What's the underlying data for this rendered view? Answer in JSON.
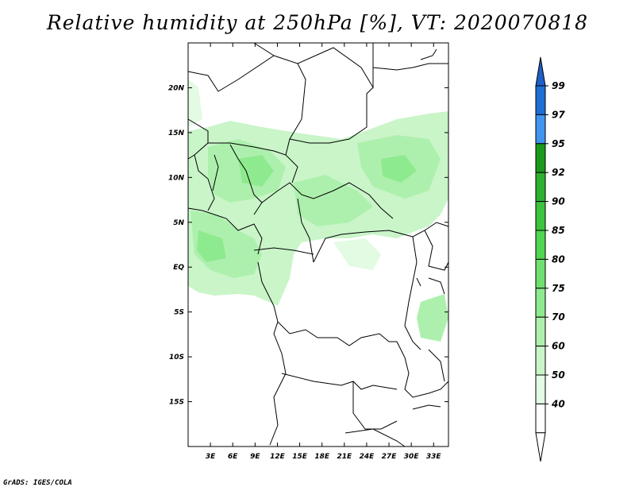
{
  "title": "Relative humidity at 250hPa [%], VT: 2020070818",
  "credit": "GrADS: IGES/COLA",
  "map": {
    "lon_range": [
      0,
      35
    ],
    "lat_range": [
      -20,
      25
    ],
    "lat_ticks": [
      "20N",
      "15N",
      "10N",
      "5N",
      "EQ",
      "5S",
      "10S",
      "15S"
    ],
    "lat_values": [
      20,
      15,
      10,
      5,
      0,
      -5,
      -10,
      -15
    ],
    "lon_ticks": [
      "3E",
      "6E",
      "9E",
      "12E",
      "15E",
      "18E",
      "21E",
      "24E",
      "27E",
      "30E",
      "33E"
    ],
    "lon_values": [
      3,
      6,
      9,
      12,
      15,
      18,
      21,
      24,
      27,
      30,
      33
    ]
  },
  "colorbar": {
    "labels": [
      "99",
      "97",
      "95",
      "92",
      "90",
      "85",
      "80",
      "75",
      "70",
      "60",
      "50",
      "40"
    ],
    "colors": [
      "#1e6fd6",
      "#3f96ee",
      "#1a9a1a",
      "#2fb02f",
      "#3cc43c",
      "#50d650",
      "#6fe06f",
      "#8eea8e",
      "#adf0ad",
      "#c9f5c9",
      "#e3fae3",
      "#ffffff"
    ],
    "top_arrow_color": "#1e5fc8",
    "bottom_arrow_color": "#ffffff"
  }
}
